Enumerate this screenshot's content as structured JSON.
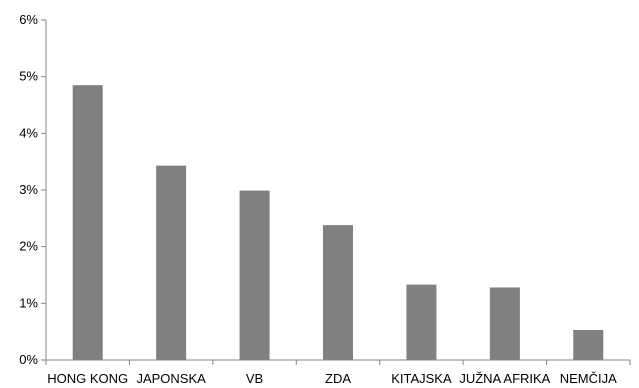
{
  "chart_data": {
    "type": "bar",
    "categories": [
      "HONG KONG",
      "JAPONSKA",
      "VB",
      "ZDA",
      "KITAJSKA",
      "JUŽNA AFRIKA",
      "NEMČIJA"
    ],
    "values": [
      4.85,
      3.43,
      2.99,
      2.38,
      1.33,
      1.28,
      0.53
    ],
    "ylim": [
      0,
      6
    ],
    "yticks": [
      "0%",
      "1%",
      "2%",
      "3%",
      "4%",
      "5%",
      "6%"
    ],
    "title": "",
    "xlabel": "",
    "ylabel": "",
    "grid": false,
    "colors": {
      "bar": "#808080",
      "axis": "#868686"
    }
  }
}
